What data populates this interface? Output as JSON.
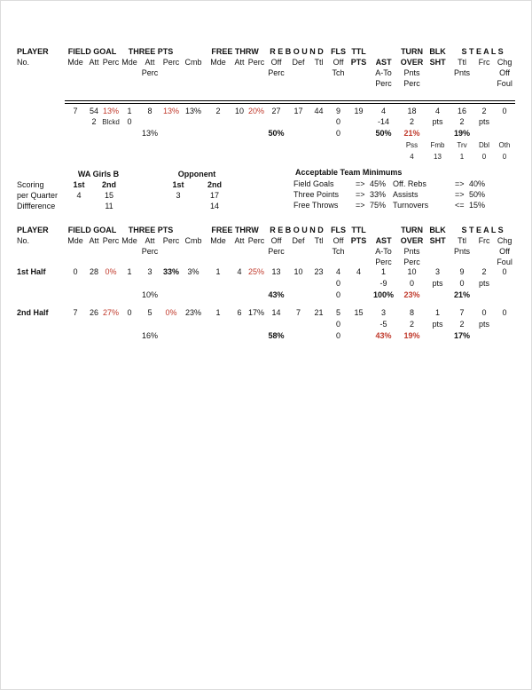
{
  "colors": {
    "accent_red": "#c0392b",
    "text": "#111111",
    "rule_line": "#000000"
  },
  "team_stats": {
    "header_rows": [
      [
        [
          0,
          "PLAYER",
          "b"
        ],
        [
          1,
          "FIELD GOAL",
          "b",
          3
        ],
        [
          4,
          "THREE PTS",
          "b",
          3
        ],
        [
          8,
          "FREE THRW",
          "b",
          3
        ],
        [
          11,
          "R E B O U N D",
          "b",
          3
        ],
        [
          14,
          "FLS",
          "b"
        ],
        [
          15,
          "TTL",
          "b"
        ],
        [
          17,
          "TURN",
          "b"
        ],
        [
          18,
          "BLK",
          "b"
        ],
        [
          19,
          "S T E A L S",
          "b",
          3
        ]
      ],
      [
        [
          0,
          "No."
        ],
        [
          1,
          "Mde"
        ],
        [
          2,
          "Att"
        ],
        [
          3,
          "Perc"
        ],
        [
          4,
          "Mde"
        ],
        [
          5,
          "Att"
        ],
        [
          6,
          "Perc"
        ],
        [
          7,
          "Cmb"
        ],
        [
          8,
          "Mde"
        ],
        [
          9,
          "Att"
        ],
        [
          10,
          "Perc"
        ],
        [
          11,
          "Off"
        ],
        [
          12,
          "Def"
        ],
        [
          13,
          "Ttl"
        ],
        [
          14,
          "Off"
        ],
        [
          15,
          "PTS",
          "b"
        ],
        [
          16,
          "AST",
          "b"
        ],
        [
          17,
          "OVER",
          "b"
        ],
        [
          18,
          "SHT",
          "b"
        ],
        [
          19,
          "Ttl"
        ],
        [
          20,
          "Frc"
        ],
        [
          21,
          "Chg"
        ]
      ],
      [
        [
          5,
          "Perc"
        ],
        [
          11,
          "Perc"
        ],
        [
          14,
          "Tch"
        ],
        [
          16,
          "A-To"
        ],
        [
          17,
          "Pnts"
        ],
        [
          19,
          "Pnts"
        ],
        [
          21,
          "Off"
        ]
      ],
      [
        [
          16,
          "Perc"
        ],
        [
          17,
          "Perc"
        ],
        [
          21,
          "Foul"
        ]
      ]
    ],
    "totals_rows": [
      [
        [
          1,
          "7"
        ],
        [
          2,
          "54"
        ],
        [
          3,
          "13%",
          "r"
        ],
        [
          4,
          "1"
        ],
        [
          5,
          "8"
        ],
        [
          6,
          "13%",
          "r"
        ],
        [
          7,
          "13%"
        ],
        [
          8,
          "2"
        ],
        [
          9,
          "10"
        ],
        [
          10,
          "20%",
          "r"
        ],
        [
          11,
          "27"
        ],
        [
          12,
          "17"
        ],
        [
          13,
          "44"
        ],
        [
          14,
          "9"
        ],
        [
          15,
          "19"
        ],
        [
          16,
          "4"
        ],
        [
          17,
          "18"
        ],
        [
          18,
          "4"
        ],
        [
          19,
          "16"
        ],
        [
          20,
          "2"
        ],
        [
          21,
          "0"
        ]
      ],
      [
        [
          2,
          "2"
        ],
        [
          3,
          "Blckd",
          "s"
        ],
        [
          4,
          "0"
        ],
        [
          14,
          "0"
        ],
        [
          16,
          "-14"
        ],
        [
          17,
          "2"
        ],
        [
          18,
          "pts"
        ],
        [
          19,
          "2"
        ],
        [
          20,
          "pts"
        ]
      ],
      [
        [
          5,
          "13%"
        ],
        [
          11,
          "50%",
          "b"
        ],
        [
          14,
          "0"
        ],
        [
          16,
          "50%",
          "b"
        ],
        [
          17,
          "21%",
          "rb"
        ],
        [
          19,
          "19%",
          "b"
        ]
      ],
      [
        [
          17,
          "Pss",
          "s"
        ],
        [
          18,
          "Fmb",
          "s"
        ],
        [
          19,
          "Trv",
          "s"
        ],
        [
          20,
          "Dbl",
          "s"
        ],
        [
          21,
          "Oth",
          "s"
        ]
      ],
      [
        [
          17,
          "4",
          "s"
        ],
        [
          18,
          "13",
          "s"
        ],
        [
          19,
          "1",
          "s"
        ],
        [
          20,
          "0",
          "s"
        ],
        [
          21,
          "0",
          "s"
        ]
      ]
    ],
    "first_half_rows": [
      [
        [
          0,
          "1st Half",
          "b"
        ],
        [
          1,
          "0"
        ],
        [
          2,
          "28"
        ],
        [
          3,
          "0%",
          "r"
        ],
        [
          4,
          "1"
        ],
        [
          5,
          "3"
        ],
        [
          6,
          "33%",
          "b"
        ],
        [
          7,
          "3%"
        ],
        [
          8,
          "1"
        ],
        [
          9,
          "4"
        ],
        [
          10,
          "25%",
          "r"
        ],
        [
          11,
          "13"
        ],
        [
          12,
          "10"
        ],
        [
          13,
          "23"
        ],
        [
          14,
          "4"
        ],
        [
          15,
          "4"
        ],
        [
          16,
          "1"
        ],
        [
          17,
          "10"
        ],
        [
          18,
          "3"
        ],
        [
          19,
          "9"
        ],
        [
          20,
          "2"
        ],
        [
          21,
          "0"
        ]
      ],
      [
        [
          14,
          "0"
        ],
        [
          16,
          "-9"
        ],
        [
          17,
          "0"
        ],
        [
          18,
          "pts"
        ],
        [
          19,
          "0"
        ],
        [
          20,
          "pts"
        ]
      ],
      [
        [
          5,
          "10%"
        ],
        [
          11,
          "43%",
          "b"
        ],
        [
          14,
          "0"
        ],
        [
          16,
          "100%",
          "b"
        ],
        [
          17,
          "23%",
          "rb"
        ],
        [
          19,
          "21%",
          "b"
        ]
      ]
    ],
    "second_half_rows": [
      [
        [
          0,
          "2nd Half",
          "b"
        ],
        [
          1,
          "7"
        ],
        [
          2,
          "26"
        ],
        [
          3,
          "27%",
          "r"
        ],
        [
          4,
          "0"
        ],
        [
          5,
          "5"
        ],
        [
          6,
          "0%",
          "r"
        ],
        [
          7,
          "23%"
        ],
        [
          8,
          "1"
        ],
        [
          9,
          "6"
        ],
        [
          10,
          "17%"
        ],
        [
          11,
          "14"
        ],
        [
          12,
          "7"
        ],
        [
          13,
          "21"
        ],
        [
          14,
          "5"
        ],
        [
          15,
          "15"
        ],
        [
          16,
          "3"
        ],
        [
          17,
          "8"
        ],
        [
          18,
          "1"
        ],
        [
          19,
          "7"
        ],
        [
          20,
          "0"
        ],
        [
          21,
          "0"
        ]
      ],
      [
        [
          14,
          "0"
        ],
        [
          16,
          "-5"
        ],
        [
          17,
          "2"
        ],
        [
          18,
          "pts"
        ],
        [
          19,
          "2"
        ],
        [
          20,
          "pts"
        ]
      ],
      [
        [
          5,
          "16%"
        ],
        [
          11,
          "58%",
          "b"
        ],
        [
          14,
          "0"
        ],
        [
          16,
          "43%",
          "rb"
        ],
        [
          17,
          "19%",
          "rb"
        ],
        [
          19,
          "17%",
          "b"
        ]
      ]
    ]
  },
  "scoring": {
    "rows": [
      [
        [
          1,
          "WA Girls B",
          "b",
          2
        ],
        [
          4,
          "Opponent",
          "b",
          2
        ]
      ],
      [
        [
          0,
          "Scoring"
        ],
        [
          1,
          "1st",
          "b"
        ],
        [
          2,
          "2nd",
          "b"
        ],
        [
          4,
          "1st",
          "b"
        ],
        [
          5,
          "2nd",
          "b"
        ]
      ],
      [
        [
          0,
          "per Quarter"
        ],
        [
          1,
          "4"
        ],
        [
          2,
          "15"
        ],
        [
          4,
          "3"
        ],
        [
          5,
          "17"
        ]
      ],
      [
        [
          0,
          "Diffference"
        ],
        [
          2,
          "11"
        ],
        [
          5,
          "14"
        ]
      ]
    ]
  },
  "minimums": {
    "title": "Acceptable Team Minimums",
    "rows": [
      [
        [
          0,
          "Field Goals"
        ],
        [
          1,
          "=>"
        ],
        [
          2,
          "45%"
        ],
        [
          3,
          "Off. Rebs"
        ],
        [
          4,
          "=>"
        ],
        [
          5,
          "40%"
        ]
      ],
      [
        [
          0,
          "Three Points"
        ],
        [
          1,
          "=>"
        ],
        [
          2,
          "33%"
        ],
        [
          3,
          "Assists"
        ],
        [
          4,
          "=>"
        ],
        [
          5,
          "50%"
        ]
      ],
      [
        [
          0,
          "Free Throws"
        ],
        [
          1,
          "=>"
        ],
        [
          2,
          "75%"
        ],
        [
          3,
          "Turnovers"
        ],
        [
          4,
          "<="
        ],
        [
          5,
          "15%"
        ]
      ]
    ]
  }
}
